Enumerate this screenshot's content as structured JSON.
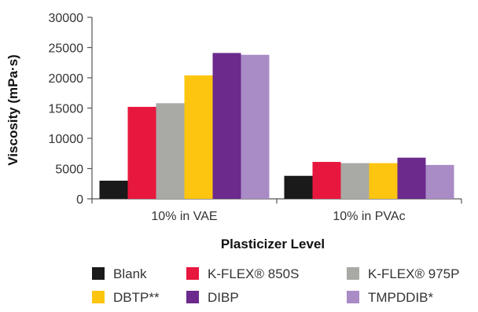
{
  "chart_data": {
    "type": "bar",
    "xlabel": "Plasticizer Level",
    "ylabel": "Viscosity (mPa·s)",
    "ylim": [
      0,
      30000
    ],
    "yticks": [
      0,
      5000,
      10000,
      15000,
      20000,
      25000,
      30000
    ],
    "categories": [
      "10% in VAE",
      "10% in PVAc"
    ],
    "series": [
      {
        "name": "Blank",
        "color": "#1a1a1a",
        "values": [
          3000,
          3800
        ]
      },
      {
        "name": "K-FLEX® 850S",
        "color": "#e8173e",
        "values": [
          15200,
          6100
        ]
      },
      {
        "name": "K-FLEX® 975P",
        "color": "#a9a9a5",
        "values": [
          15800,
          5900
        ]
      },
      {
        "name": "DBTP**",
        "color": "#fdc50f",
        "values": [
          20400,
          5900
        ]
      },
      {
        "name": "DIBP",
        "color": "#6b2a8c",
        "values": [
          24100,
          6800
        ]
      },
      {
        "name": "TMPDDIB*",
        "color": "#a98bc6",
        "values": [
          23800,
          5600
        ]
      }
    ],
    "grid": false,
    "legend_position": "bottom"
  }
}
